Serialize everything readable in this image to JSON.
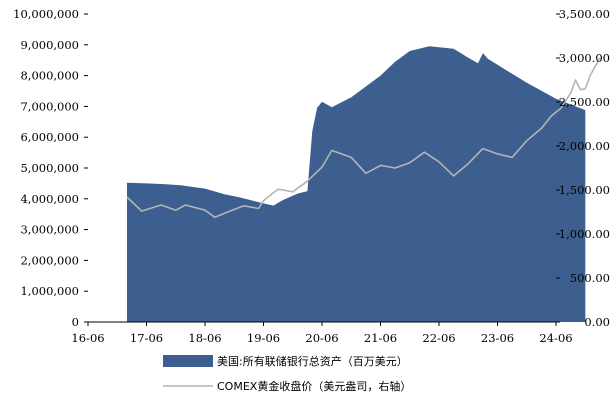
{
  "chart_data": {
    "type": "area",
    "title": "",
    "xlabel": "",
    "ylabel": "",
    "ylabel_right": "",
    "x_ticks": [
      "16-06",
      "17-06",
      "18-06",
      "19-06",
      "20-06",
      "21-06",
      "22-06",
      "23-06",
      "24-06"
    ],
    "ylim_left": [
      0,
      10000000
    ],
    "y_ticks_left": [
      "0",
      "1,000,000",
      "2,000,000",
      "3,000,000",
      "4,000,000",
      "5,000,000",
      "6,000,000",
      "7,000,000",
      "8,000,000",
      "9,000,000",
      "10,000,000"
    ],
    "ylim_right": [
      0,
      3500
    ],
    "y_ticks_right": [
      "0.00",
      "500.00",
      "1,000.00",
      "1,500.00",
      "2,000.00",
      "2,500.00",
      "3,000.00",
      "3,500.00"
    ],
    "legend_position": "bottom",
    "series": [
      {
        "name": "美国:所有联储银行总资产（百万美元）",
        "axis": "left",
        "type": "area",
        "color": "#3d5f8f",
        "points": [
          [
            "2017-02",
            4520000
          ],
          [
            "2017-06",
            4500000
          ],
          [
            "2017-10",
            4470000
          ],
          [
            "2018-01",
            4440000
          ],
          [
            "2018-06",
            4330000
          ],
          [
            "2018-10",
            4150000
          ],
          [
            "2019-01",
            4050000
          ],
          [
            "2019-06",
            3850000
          ],
          [
            "2019-08",
            3780000
          ],
          [
            "2019-10",
            3960000
          ],
          [
            "2020-01",
            4170000
          ],
          [
            "2020-03",
            4250000
          ],
          [
            "2020-04",
            6200000
          ],
          [
            "2020-05",
            6950000
          ],
          [
            "2020-06",
            7150000
          ],
          [
            "2020-08",
            6970000
          ],
          [
            "2020-12",
            7300000
          ],
          [
            "2021-06",
            8000000
          ],
          [
            "2021-09",
            8450000
          ],
          [
            "2021-12",
            8800000
          ],
          [
            "2022-04",
            8950000
          ],
          [
            "2022-09",
            8870000
          ],
          [
            "2022-12",
            8580000
          ],
          [
            "2023-02",
            8400000
          ],
          [
            "2023-03",
            8730000
          ],
          [
            "2023-04",
            8550000
          ],
          [
            "2023-06",
            8350000
          ],
          [
            "2023-12",
            7770000
          ],
          [
            "2024-06",
            7250000
          ],
          [
            "2024-12",
            6880000
          ]
        ]
      },
      {
        "name": "COMEX黄金收盘价（美元盎司，右轴）",
        "axis": "right",
        "type": "line",
        "color": "#b4b4b4",
        "points": [
          [
            "2017-02",
            1420
          ],
          [
            "2017-05",
            1260
          ],
          [
            "2017-09",
            1330
          ],
          [
            "2017-12",
            1270
          ],
          [
            "2018-02",
            1330
          ],
          [
            "2018-06",
            1270
          ],
          [
            "2018-08",
            1190
          ],
          [
            "2018-12",
            1280
          ],
          [
            "2019-02",
            1320
          ],
          [
            "2019-05",
            1290
          ],
          [
            "2019-06",
            1380
          ],
          [
            "2019-09",
            1510
          ],
          [
            "2019-12",
            1480
          ],
          [
            "2020-03",
            1600
          ],
          [
            "2020-06",
            1760
          ],
          [
            "2020-08",
            1950
          ],
          [
            "2020-12",
            1870
          ],
          [
            "2021-03",
            1690
          ],
          [
            "2021-06",
            1780
          ],
          [
            "2021-09",
            1750
          ],
          [
            "2021-12",
            1810
          ],
          [
            "2022-03",
            1930
          ],
          [
            "2022-06",
            1820
          ],
          [
            "2022-09",
            1660
          ],
          [
            "2022-12",
            1800
          ],
          [
            "2023-03",
            1970
          ],
          [
            "2023-06",
            1910
          ],
          [
            "2023-09",
            1870
          ],
          [
            "2023-12",
            2060
          ],
          [
            "2024-03",
            2200
          ],
          [
            "2024-05",
            2340
          ],
          [
            "2024-07",
            2430
          ],
          [
            "2024-09",
            2600
          ],
          [
            "2024-10",
            2750
          ],
          [
            "2024-11",
            2640
          ],
          [
            "2024-12",
            2650
          ],
          [
            "2025-01",
            2800
          ],
          [
            "2025-02",
            2900
          ],
          [
            "2025-03",
            3000
          ]
        ]
      }
    ]
  }
}
